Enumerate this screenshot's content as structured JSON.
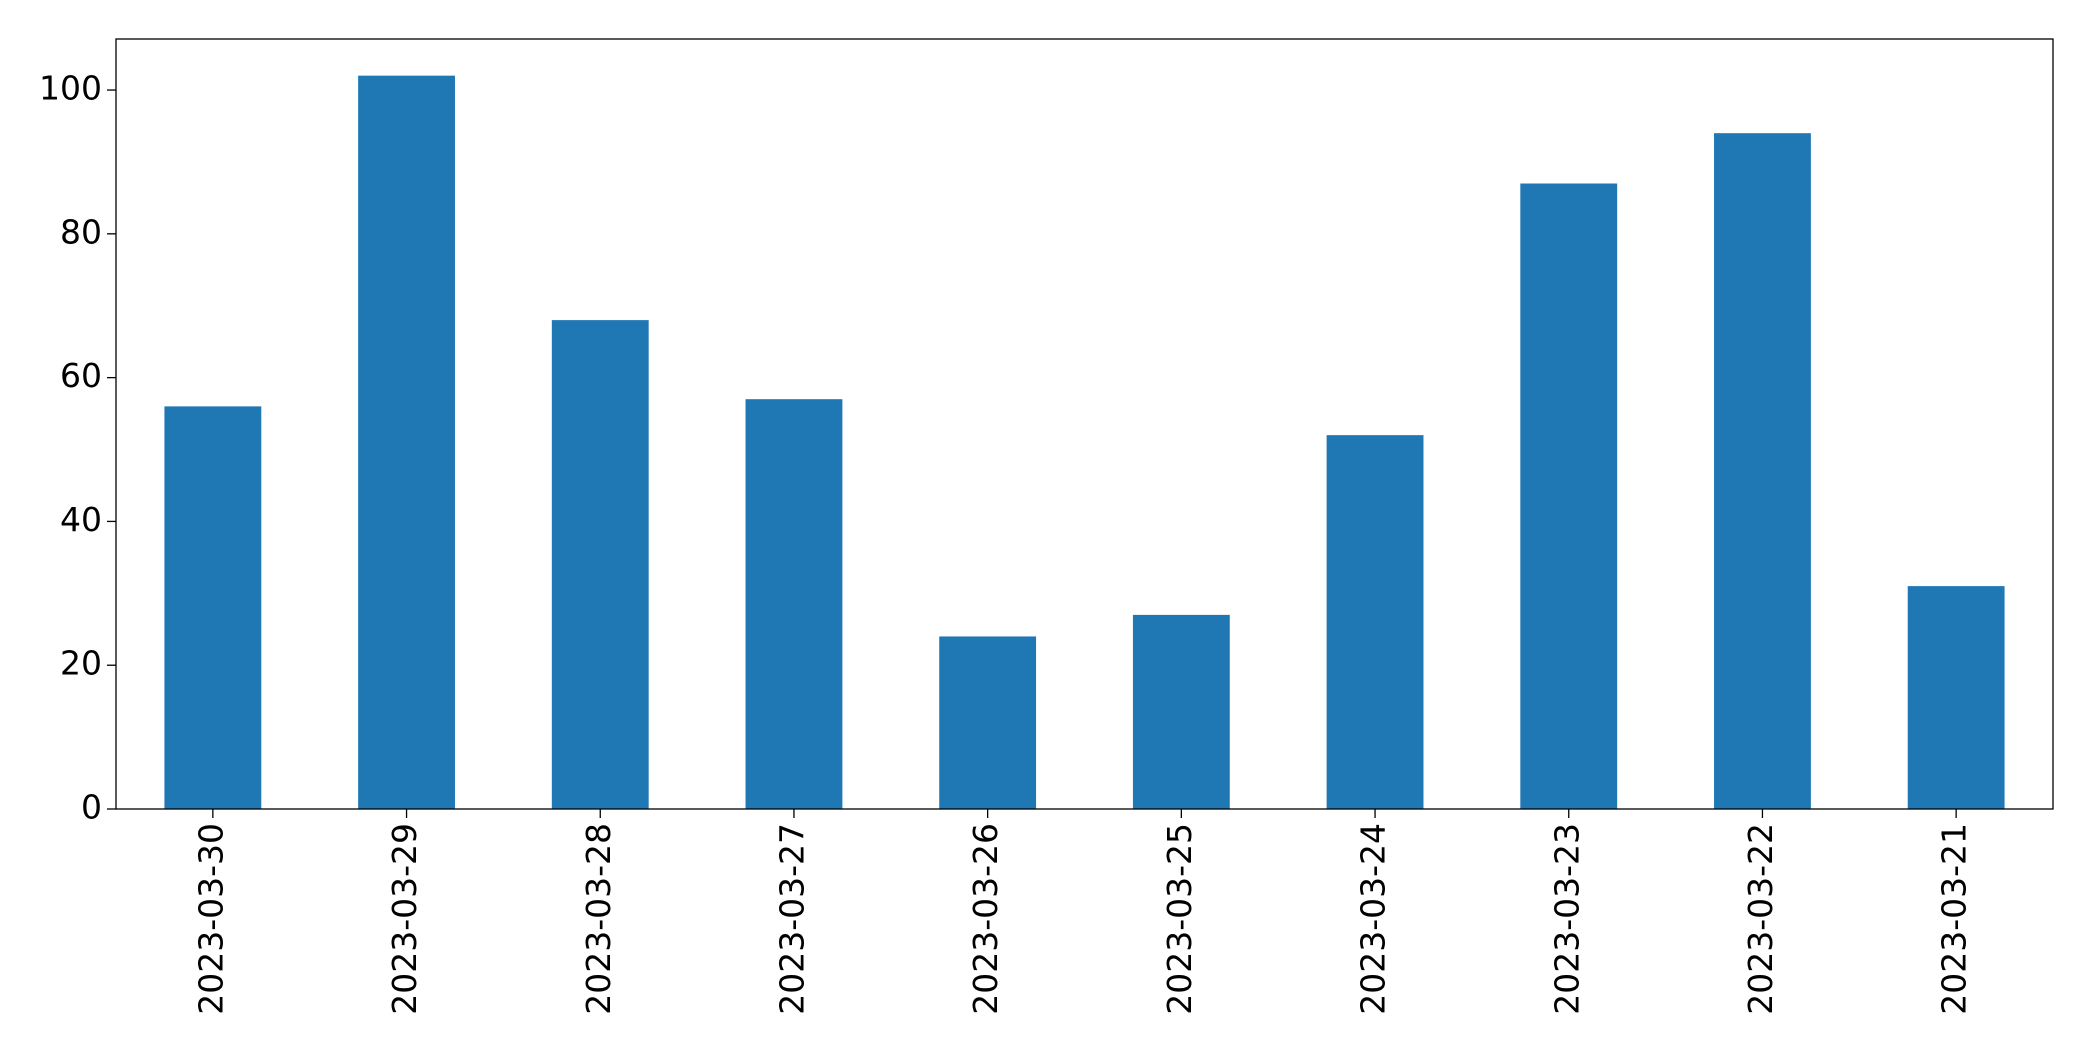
{
  "chart_data": {
    "type": "bar",
    "categories": [
      "2023-03-30",
      "2023-03-29",
      "2023-03-28",
      "2023-03-27",
      "2023-03-26",
      "2023-03-25",
      "2023-03-24",
      "2023-03-23",
      "2023-03-22",
      "2023-03-21"
    ],
    "values": [
      56,
      102,
      68,
      57,
      24,
      27,
      52,
      87,
      94,
      31
    ],
    "color": "#1f77b4",
    "ylim": [
      0,
      107.1
    ],
    "yticks": [
      0,
      20,
      40,
      60,
      80,
      100
    ],
    "grid": false
  }
}
